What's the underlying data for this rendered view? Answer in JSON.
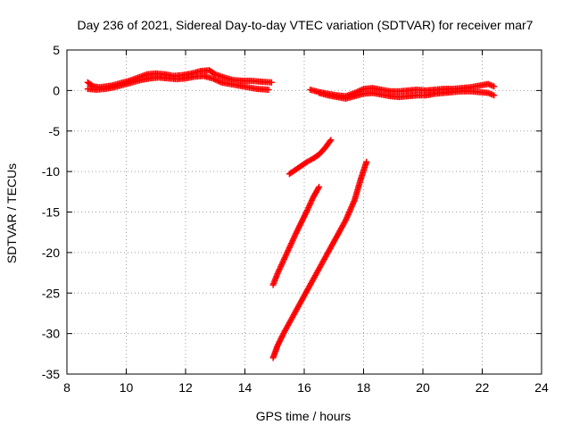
{
  "chart_data": {
    "type": "scatter",
    "title": "Day 236 of 2021, Sidereal Day-to-day VTEC variation (SDTVAR) for receiver mar7",
    "xlabel": "GPS time / hours",
    "ylabel": "SDTVAR / TECUs",
    "xlim": [
      8,
      24
    ],
    "ylim": [
      -35,
      5
    ],
    "xticks": [
      8,
      10,
      12,
      14,
      16,
      18,
      20,
      22,
      24
    ],
    "yticks": [
      5,
      0,
      -5,
      -10,
      -15,
      -20,
      -25,
      -30,
      -35
    ],
    "grid": true,
    "marker": "plus",
    "series_color": "#ff0000",
    "series": [
      {
        "values": [
          [
            8.7,
            1.0
          ],
          [
            8.9,
            0.5
          ],
          [
            9.1,
            0.4
          ],
          [
            9.3,
            0.5
          ],
          [
            9.5,
            0.6
          ],
          [
            9.8,
            0.9
          ],
          [
            10.1,
            1.2
          ],
          [
            10.4,
            1.6
          ],
          [
            10.7,
            2.0
          ],
          [
            11.0,
            2.1
          ],
          [
            11.3,
            2.0
          ],
          [
            11.6,
            1.8
          ],
          [
            11.9,
            1.9
          ],
          [
            12.2,
            2.1
          ],
          [
            12.5,
            2.4
          ],
          [
            12.8,
            2.5
          ],
          [
            13.0,
            2.0
          ],
          [
            13.3,
            1.6
          ],
          [
            13.6,
            1.3
          ],
          [
            13.9,
            1.2
          ],
          [
            14.2,
            1.2
          ],
          [
            14.5,
            1.1
          ],
          [
            14.9,
            1.0
          ]
        ]
      },
      {
        "values": [
          [
            8.7,
            0.2
          ],
          [
            9.0,
            0.1
          ],
          [
            9.3,
            0.2
          ],
          [
            9.6,
            0.4
          ],
          [
            9.9,
            0.7
          ],
          [
            10.2,
            1.0
          ],
          [
            10.5,
            1.3
          ],
          [
            10.8,
            1.5
          ],
          [
            11.1,
            1.6
          ],
          [
            11.4,
            1.5
          ],
          [
            11.7,
            1.4
          ],
          [
            12.0,
            1.5
          ],
          [
            12.3,
            1.7
          ],
          [
            12.6,
            1.8
          ],
          [
            12.9,
            1.5
          ],
          [
            13.2,
            1.0
          ],
          [
            13.5,
            0.8
          ],
          [
            13.8,
            0.6
          ],
          [
            14.1,
            0.4
          ],
          [
            14.4,
            0.2
          ],
          [
            14.8,
            0.1
          ]
        ]
      },
      {
        "values": [
          [
            16.2,
            0.1
          ],
          [
            16.5,
            -0.2
          ],
          [
            16.8,
            -0.4
          ],
          [
            17.1,
            -0.6
          ],
          [
            17.4,
            -0.7
          ],
          [
            17.7,
            -0.3
          ],
          [
            18.0,
            0.2
          ],
          [
            18.3,
            0.3
          ],
          [
            18.6,
            0.1
          ],
          [
            18.9,
            -0.1
          ],
          [
            19.2,
            -0.1
          ],
          [
            19.5,
            0.0
          ],
          [
            19.8,
            0.1
          ],
          [
            20.1,
            0.0
          ],
          [
            20.4,
            0.1
          ],
          [
            20.7,
            0.2
          ],
          [
            21.0,
            0.2
          ],
          [
            21.3,
            0.3
          ],
          [
            21.6,
            0.4
          ],
          [
            21.9,
            0.6
          ],
          [
            22.2,
            0.8
          ],
          [
            22.4,
            0.5
          ]
        ]
      },
      {
        "values": [
          [
            16.5,
            -0.3
          ],
          [
            16.8,
            -0.6
          ],
          [
            17.1,
            -0.8
          ],
          [
            17.4,
            -1.0
          ],
          [
            17.7,
            -0.7
          ],
          [
            18.0,
            -0.4
          ],
          [
            18.3,
            -0.3
          ],
          [
            18.6,
            -0.5
          ],
          [
            18.9,
            -0.7
          ],
          [
            19.2,
            -0.8
          ],
          [
            19.5,
            -0.7
          ],
          [
            19.8,
            -0.6
          ],
          [
            20.1,
            -0.6
          ],
          [
            20.4,
            -0.4
          ],
          [
            20.7,
            -0.3
          ],
          [
            21.0,
            -0.2
          ],
          [
            21.3,
            -0.1
          ],
          [
            21.6,
            -0.1
          ],
          [
            21.9,
            -0.2
          ],
          [
            22.2,
            -0.3
          ],
          [
            22.4,
            -0.6
          ]
        ]
      },
      {
        "values": [
          [
            15.5,
            -10.3
          ],
          [
            15.7,
            -9.8
          ],
          [
            15.9,
            -9.3
          ],
          [
            16.1,
            -8.8
          ],
          [
            16.3,
            -8.4
          ],
          [
            16.5,
            -7.9
          ],
          [
            16.7,
            -7.1
          ],
          [
            16.9,
            -6.1
          ]
        ]
      },
      {
        "values": [
          [
            14.95,
            -24.0
          ],
          [
            15.1,
            -22.6
          ],
          [
            15.3,
            -21.0
          ],
          [
            15.5,
            -19.4
          ],
          [
            15.7,
            -17.8
          ],
          [
            15.9,
            -16.3
          ],
          [
            16.1,
            -14.8
          ],
          [
            16.3,
            -13.2
          ],
          [
            16.5,
            -11.9
          ]
        ]
      },
      {
        "values": [
          [
            14.95,
            -33.0
          ],
          [
            15.1,
            -31.5
          ],
          [
            15.3,
            -30.0
          ],
          [
            15.6,
            -28.0
          ],
          [
            15.9,
            -26.0
          ],
          [
            16.2,
            -24.0
          ],
          [
            16.5,
            -22.0
          ],
          [
            16.8,
            -20.0
          ],
          [
            17.1,
            -18.0
          ],
          [
            17.4,
            -16.0
          ],
          [
            17.7,
            -13.5
          ],
          [
            17.9,
            -11.0
          ],
          [
            18.1,
            -8.8
          ]
        ]
      }
    ]
  }
}
